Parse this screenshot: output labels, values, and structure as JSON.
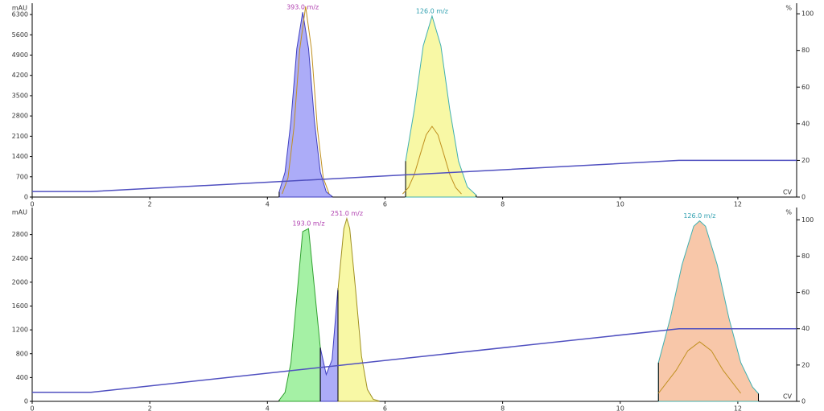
{
  "chart_data": [
    {
      "type": "line",
      "x_label": "CV",
      "y_label": "mAU",
      "y2_label": "%",
      "xlim": [
        0,
        13
      ],
      "xticks": [
        0,
        2,
        4,
        6,
        8,
        10,
        12
      ],
      "ylim": [
        0,
        6580
      ],
      "yticks": [
        0,
        700,
        1400,
        2100,
        2800,
        3500,
        4200,
        4900,
        5600,
        6300
      ],
      "y2lim": [
        0,
        104
      ],
      "y2ticks": [
        0,
        20,
        40,
        60,
        80,
        100
      ],
      "series": [
        {
          "kind": "area",
          "color": "#4040c0",
          "fill": "#a8a8f8",
          "x": [
            4.2,
            4.3,
            4.4,
            4.5,
            4.6,
            4.7,
            4.8,
            4.9,
            5.0,
            5.1
          ],
          "values": [
            180,
            860,
            2620,
            5120,
            6380,
            5120,
            2620,
            860,
            180,
            25
          ]
        },
        {
          "kind": "area",
          "color": "#40b0b0",
          "fill": "#f8f8a0",
          "x": [
            6.35,
            6.5,
            6.65,
            6.8,
            6.95,
            7.1,
            7.25,
            7.4,
            7.55
          ],
          "values": [
            1240,
            3040,
            5220,
            6250,
            5220,
            3040,
            1240,
            350,
            70
          ]
        },
        {
          "kind": "line",
          "color": "#c09020",
          "x": [
            4.25,
            4.35,
            4.45,
            4.55,
            4.65,
            4.75,
            4.85,
            4.95,
            5.05
          ],
          "values": [
            110,
            660,
            2370,
            5100,
            6580,
            5100,
            2370,
            660,
            110
          ]
        },
        {
          "kind": "line",
          "color": "#c09020",
          "x": [
            6.3,
            6.4,
            6.5,
            6.6,
            6.7,
            6.8,
            6.9,
            7.0,
            7.1,
            7.2,
            7.3
          ],
          "values": [
            107,
            330,
            790,
            1480,
            2150,
            2440,
            2150,
            1480,
            790,
            330,
            107
          ]
        },
        {
          "kind": "line",
          "color": "#5050c0",
          "axis": "y2",
          "x": [
            0,
            1,
            11,
            13
          ],
          "values": [
            3,
            3,
            20,
            20
          ]
        }
      ],
      "annotations": [
        {
          "text": "393.0 m/z",
          "color": "#b040b0",
          "series": 0
        },
        {
          "text": "126.0 m/z",
          "color": "#30a0b0",
          "series": 1
        }
      ]
    },
    {
      "type": "line",
      "x_label": "CV",
      "y_label": "mAU",
      "y2_label": "%",
      "xlim": [
        0,
        13
      ],
      "xticks": [
        0,
        2,
        4,
        6,
        8,
        10,
        12
      ],
      "ylim": [
        0,
        3200
      ],
      "yticks": [
        0,
        400,
        800,
        1200,
        1600,
        2000,
        2400,
        2800
      ],
      "y2lim": [
        0,
        105
      ],
      "y2ticks": [
        0,
        20,
        40,
        60,
        80,
        100
      ],
      "series": [
        {
          "kind": "area",
          "color": "#30a030",
          "fill": "#a0f0a0",
          "x": [
            4.2,
            4.3,
            4.4,
            4.5,
            4.6,
            4.7,
            4.8,
            4.9
          ],
          "values": [
            20,
            150,
            650,
            1750,
            2850,
            2900,
            1900,
            900
          ]
        },
        {
          "kind": "area",
          "color": "#4040c0",
          "fill": "#a8a8f8",
          "x": [
            4.9,
            5.0,
            5.1,
            5.2
          ],
          "values": [
            900,
            450,
            700,
            1900
          ]
        },
        {
          "kind": "area",
          "color": "#a09020",
          "fill": "#f8f8a0",
          "x": [
            5.2,
            5.3,
            5.35,
            5.4,
            5.5,
            5.6,
            5.7,
            5.8,
            5.9
          ],
          "values": [
            1870,
            2900,
            3070,
            2900,
            1870,
            760,
            200,
            35,
            5
          ]
        },
        {
          "kind": "area",
          "color": "#40b0b0",
          "fill": "#f8c4a4",
          "x": [
            10.65,
            10.85,
            11.05,
            11.25,
            11.35,
            11.45,
            11.65,
            11.85,
            12.05,
            12.25,
            12.35
          ],
          "values": [
            650,
            1390,
            2290,
            2940,
            3030,
            2940,
            2290,
            1390,
            650,
            240,
            130
          ]
        },
        {
          "kind": "line",
          "color": "#c09020",
          "x": [
            10.65,
            10.95,
            11.15,
            11.35,
            11.55,
            11.75,
            12.05
          ],
          "values": [
            135,
            520,
            850,
            1000,
            850,
            520,
            135
          ]
        },
        {
          "kind": "line",
          "color": "#5050c0",
          "axis": "y2",
          "x": [
            0,
            1,
            11,
            13
          ],
          "values": [
            5,
            5,
            40,
            40
          ]
        }
      ],
      "annotations": [
        {
          "text": "193.0 m/z",
          "color": "#b040b0",
          "series": 0
        },
        {
          "text": "251.0 m/z",
          "color": "#b040b0",
          "series": 2
        },
        {
          "text": "126.0 m/z",
          "color": "#30a0b0",
          "series": 3
        }
      ]
    }
  ]
}
